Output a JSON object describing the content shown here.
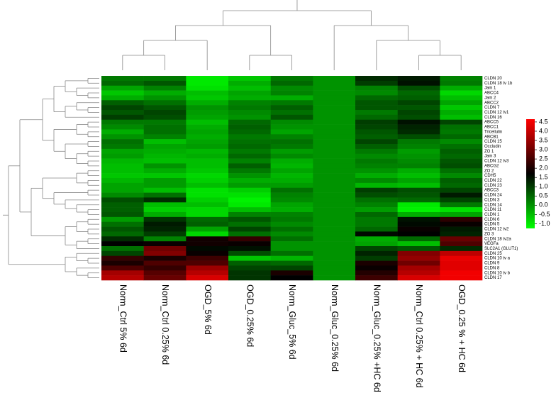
{
  "chart_data": {
    "type": "heatmap",
    "rows": [
      "CLDN 20",
      "CLDN 18 tv 1b",
      "Jam 1",
      "ABCC4",
      "Jam 2",
      "ABCC2",
      "CLDN 7",
      "CLDN 12 tv1",
      "CLDN 16",
      "ABCC5",
      "ABCC1",
      "Tricellulin",
      "ABCB1",
      "CLDN 15",
      "Occludin",
      "ZO 1",
      "Jam 3",
      "CLDN 12 tv3",
      "ABCG2",
      "ZO 2",
      "CDH5",
      "CLDN 22",
      "CLDN 23",
      "ABCC3",
      "CLDN 24",
      "CLDN 3",
      "CLDN 14",
      "CLDN 11",
      "CLDN 1",
      "CLDN 6",
      "CLDN 5",
      "CLDN 12 tv2",
      "ZO 3",
      "CLDN 18 tv2a",
      "VEGFa",
      "SLC2A1 (GLUT1)",
      "CLDN 25",
      "CLDN 10 tv a",
      "CLDN 9",
      "CLDN 8",
      "CLDN 10 tv b",
      "CLDN 17"
    ],
    "columns": [
      "Norm_Ctrl 5% 6d",
      "Norm_Ctrl 0.25% 6d",
      "OGD_5% 6d",
      "OGD_0.25% 6d",
      "Norm_Gluc_5% 6d",
      "Norm_Gluc_0.25% 6d",
      "Norm_Gluc_0.25% +HC 6d",
      "Norm_Ctrl 0.25% + HC 6d",
      "OGD_0.25 % + HC 6d"
    ],
    "values": [
      [
        0.3,
        0.3,
        -1,
        -0.6,
        0.3,
        0,
        1.2,
        1.4,
        0.2
      ],
      [
        0.5,
        0.7,
        -1,
        -0.3,
        0.5,
        0,
        1.0,
        1.5,
        0.3
      ],
      [
        -0.2,
        0.2,
        -0.9,
        -0.5,
        0.1,
        0,
        0.2,
        0.8,
        -0.3
      ],
      [
        -0.6,
        -0.3,
        -0.5,
        -0.2,
        0.2,
        0,
        0.1,
        0.5,
        -0.8
      ],
      [
        -0.3,
        0.0,
        -0.6,
        -0.3,
        -0.3,
        0,
        0.5,
        0.6,
        -0.5
      ],
      [
        0.6,
        0.4,
        -0.3,
        0.2,
        0.3,
        0,
        0.7,
        0.9,
        -0.2
      ],
      [
        0.9,
        0.7,
        0.0,
        0.3,
        0.6,
        0,
        0.7,
        0.7,
        -0.6
      ],
      [
        0.7,
        0.9,
        -0.1,
        0.1,
        0.4,
        0,
        0.3,
        0.9,
        -0.3
      ],
      [
        1.0,
        0.8,
        -0.2,
        0.0,
        0.7,
        0,
        0.5,
        0.8,
        -0.5
      ],
      [
        0.3,
        0.3,
        -0.5,
        0.5,
        0.1,
        0,
        1.0,
        1.5,
        0.9
      ],
      [
        0.1,
        0.4,
        -0.3,
        0.6,
        0.0,
        0,
        0.9,
        1.3,
        0.4
      ],
      [
        -0.3,
        0.4,
        -0.2,
        0.5,
        -0.2,
        0,
        0.7,
        1.2,
        0.3
      ],
      [
        0.0,
        0.2,
        -0.3,
        0.3,
        0.2,
        0,
        0.6,
        0.8,
        0.5
      ],
      [
        0.4,
        -0.5,
        -0.2,
        0.4,
        0.4,
        0,
        0.9,
        0.3,
        0.1
      ],
      [
        0.3,
        -0.2,
        -0.1,
        0.5,
        0.3,
        0,
        0.6,
        0.2,
        0.4
      ],
      [
        -0.2,
        -0.3,
        -0.4,
        0.3,
        -0.1,
        0,
        0.3,
        -0.1,
        0.6
      ],
      [
        -0.1,
        -0.4,
        -0.3,
        0.5,
        0.1,
        0,
        0.1,
        0.0,
        0.5
      ],
      [
        -0.4,
        -0.5,
        -0.5,
        0.2,
        -0.3,
        0,
        0.3,
        0.1,
        0.7
      ],
      [
        -0.5,
        0.0,
        -0.5,
        0.6,
        -0.4,
        0,
        0.2,
        0.2,
        0.8
      ],
      [
        -0.5,
        -0.3,
        -0.6,
        0.3,
        -0.2,
        0,
        0.0,
        -0.3,
        0.4
      ],
      [
        -0.6,
        -0.6,
        -0.8,
        0.0,
        -0.4,
        0,
        -0.3,
        -0.5,
        0.1
      ],
      [
        -0.4,
        -0.1,
        -0.7,
        -0.3,
        -0.3,
        0,
        0.1,
        -0.2,
        0.6
      ],
      [
        -0.2,
        -0.1,
        -0.5,
        -0.1,
        -0.1,
        0,
        -0.4,
        -0.5,
        0.5
      ],
      [
        -0.2,
        -0.5,
        -0.9,
        -0.7,
        0.4,
        0,
        1.0,
        0.8,
        0.9
      ],
      [
        0.1,
        0.4,
        -0.9,
        -0.9,
        0.2,
        0,
        0.8,
        0.7,
        1.4
      ],
      [
        0.8,
        1.2,
        -0.7,
        -1.1,
        0.1,
        0,
        0.4,
        0.5,
        0.9
      ],
      [
        0.6,
        -0.5,
        -0.5,
        -1.0,
        -0.2,
        0,
        0.2,
        -1.0,
        0.3
      ],
      [
        0.6,
        -0.7,
        -0.8,
        -0.5,
        -0.3,
        0,
        -0.1,
        -1.1,
        -0.9
      ],
      [
        0.7,
        -0.3,
        -0.8,
        0.2,
        0.2,
        0,
        0.5,
        -0.3,
        -0.2
      ],
      [
        -0.1,
        1.1,
        0.5,
        0.7,
        0.3,
        0,
        0.3,
        1.5,
        2.2
      ],
      [
        0.4,
        1.4,
        0.6,
        0.4,
        0.1,
        0,
        0.3,
        1.6,
        1.8
      ],
      [
        0.7,
        1.3,
        -0.2,
        0.9,
        0.4,
        0,
        0.5,
        1.8,
        1.4
      ],
      [
        0.5,
        1.0,
        -0.8,
        0.4,
        0.1,
        0,
        1.6,
        1.7,
        1.3
      ],
      [
        1.2,
        0.2,
        1.9,
        2.3,
        0.4,
        0,
        -0.3,
        0.5,
        2.9
      ],
      [
        1.7,
        1.8,
        1.9,
        1.8,
        0.0,
        0,
        -0.2,
        -0.5,
        2.6
      ],
      [
        0.4,
        3.0,
        1.6,
        1.5,
        0.0,
        0,
        0.9,
        0.7,
        1.2
      ],
      [
        0.9,
        3.2,
        1.8,
        0.8,
        0.4,
        0,
        1.3,
        3.2,
        3.9
      ],
      [
        2.3,
        2.0,
        2.4,
        -0.6,
        -0.4,
        0,
        1.0,
        3.4,
        4.4
      ],
      [
        2.0,
        2.6,
        2.6,
        0.6,
        0.5,
        0,
        2.0,
        3.0,
        4.3
      ],
      [
        2.6,
        2.3,
        3.5,
        0.9,
        0.9,
        0,
        1.8,
        3.6,
        4.3
      ],
      [
        3.6,
        2.7,
        3.8,
        1.1,
        2.0,
        0,
        2.1,
        3.8,
        4.5
      ],
      [
        3.8,
        2.9,
        4.2,
        1.1,
        1.7,
        0,
        2.4,
        4.2,
        4.5
      ]
    ],
    "colors": {
      "low": "#00ff00",
      "mid": "#000000",
      "high": "#ff0000"
    },
    "color_mid": 1.7,
    "colorbar_lim": [
      -1.25,
      4.65
    ],
    "colorbar_ticks": [
      {
        "value": -1,
        "label": "-1.0"
      },
      -0.5,
      {
        "value": 0,
        "label": "0.0"
      },
      0.5,
      {
        "value": 1,
        "label": "1.0"
      },
      1.5,
      {
        "value": 2,
        "label": "2.0"
      },
      2.5,
      {
        "value": 3,
        "label": "3.0"
      },
      3.5,
      {
        "value": 4,
        "label": "4.0"
      },
      4.5
    ]
  }
}
